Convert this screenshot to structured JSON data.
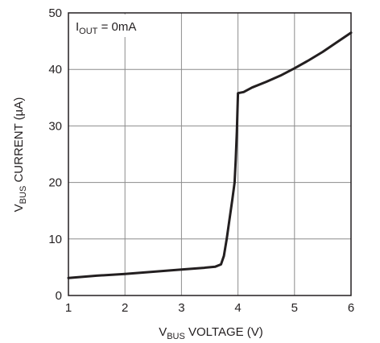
{
  "chart_data": {
    "type": "line",
    "title": "",
    "xlabel": {
      "prefix": "V",
      "sub": "BUS",
      "suffix": " VOLTAGE (V)"
    },
    "ylabel": {
      "prefix": "V",
      "sub": "BUS",
      "suffix": " CURRENT (µA)"
    },
    "annotation": {
      "prefix": "I",
      "sub": "OUT",
      "suffix": " = 0mA"
    },
    "xlim": [
      1,
      6
    ],
    "ylim": [
      0,
      50
    ],
    "x_ticks": [
      "1",
      "2",
      "3",
      "4",
      "5",
      "6"
    ],
    "y_ticks": [
      "0",
      "10",
      "20",
      "30",
      "40",
      "50"
    ],
    "grid": true,
    "series": [
      {
        "name": "",
        "color": "#231f20",
        "points": [
          [
            1.0,
            3.1
          ],
          [
            1.5,
            3.5
          ],
          [
            2.0,
            3.8
          ],
          [
            2.5,
            4.2
          ],
          [
            3.0,
            4.6
          ],
          [
            3.4,
            4.9
          ],
          [
            3.6,
            5.1
          ],
          [
            3.7,
            5.5
          ],
          [
            3.75,
            7.0
          ],
          [
            3.8,
            10.0
          ],
          [
            3.85,
            13.5
          ],
          [
            3.9,
            17.0
          ],
          [
            3.94,
            20.0
          ],
          [
            3.96,
            24.0
          ],
          [
            3.98,
            29.0
          ],
          [
            4.0,
            35.8
          ],
          [
            4.1,
            36.0
          ],
          [
            4.25,
            36.8
          ],
          [
            4.5,
            37.8
          ],
          [
            4.75,
            38.9
          ],
          [
            5.0,
            40.2
          ],
          [
            5.25,
            41.6
          ],
          [
            5.5,
            43.1
          ],
          [
            5.75,
            44.8
          ],
          [
            6.0,
            46.5
          ]
        ]
      }
    ]
  }
}
